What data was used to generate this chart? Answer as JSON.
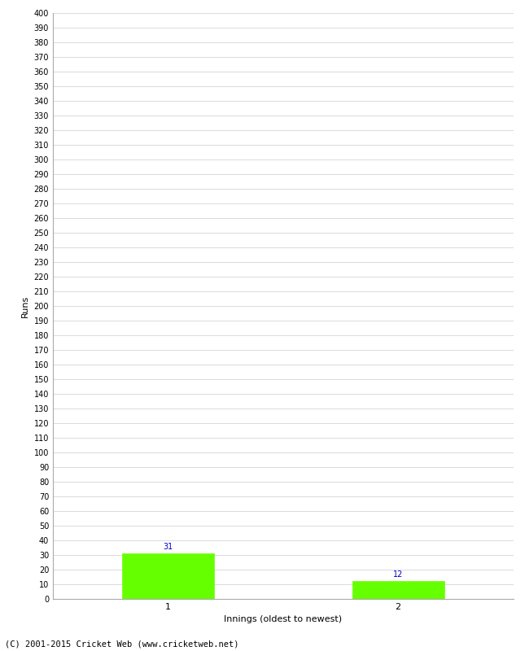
{
  "categories": [
    "1",
    "2"
  ],
  "values": [
    31,
    12
  ],
  "bar_color": "#66ff00",
  "bar_edgecolor": "#66ff00",
  "ylabel": "Runs",
  "xlabel": "Innings (oldest to newest)",
  "ylim": [
    0,
    400
  ],
  "ytick_step": 10,
  "background_color": "#ffffff",
  "grid_color": "#cccccc",
  "label_color": "#0000cc",
  "footer": "(C) 2001-2015 Cricket Web (www.cricketweb.net)",
  "bar_positions": [
    1,
    3
  ],
  "xlim": [
    0,
    4
  ],
  "figsize": [
    6.5,
    8.0
  ],
  "dpi": 100
}
